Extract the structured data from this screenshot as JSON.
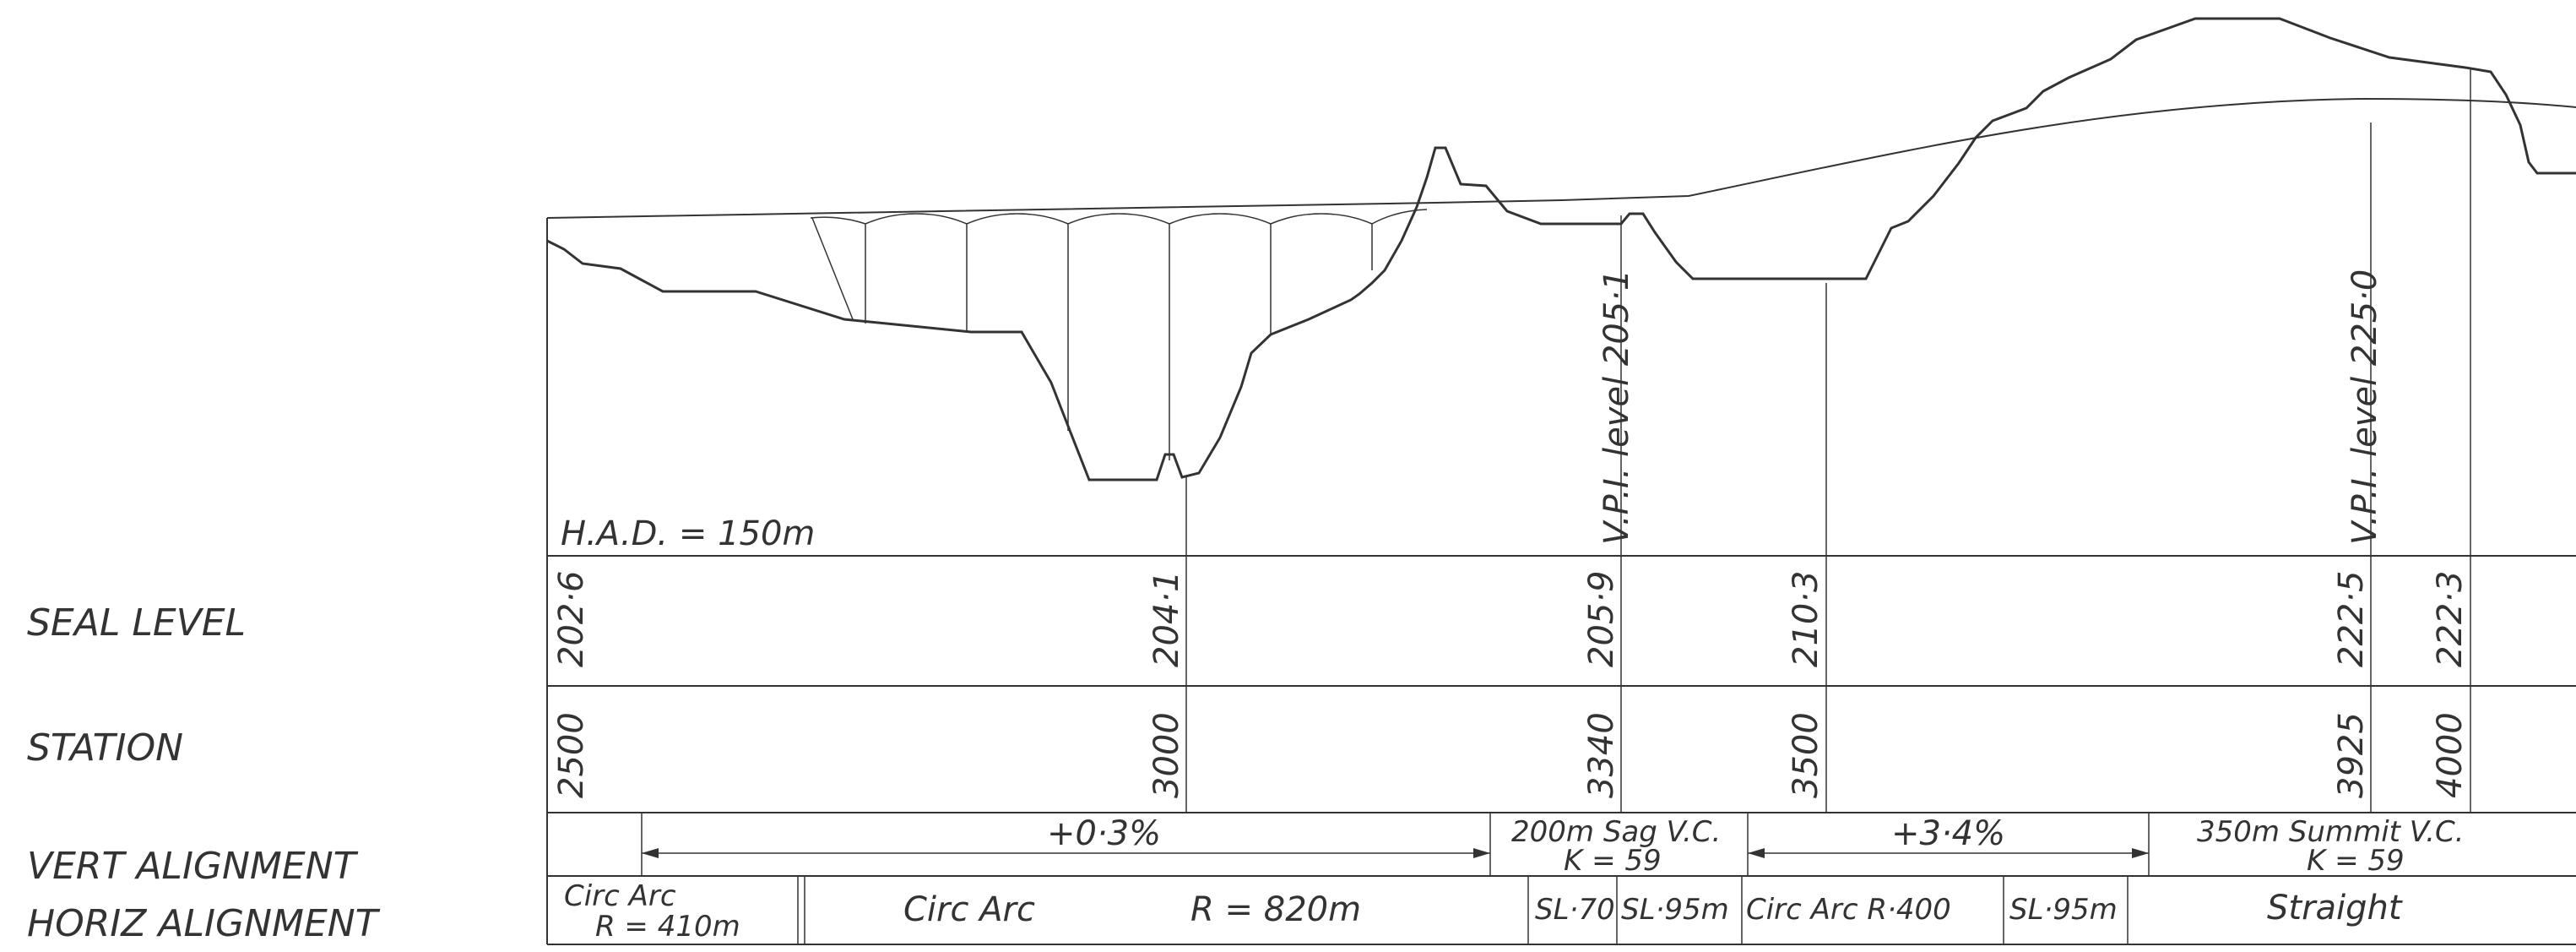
{
  "row_labels": {
    "seal_level": "SEAL LEVEL",
    "station": "STATION",
    "vert_alignment": "VERT ALIGNMENT",
    "horiz_alignment": "HORIZ ALIGNMENT"
  },
  "datum": "H.A.D. = 150m",
  "vpi_labels": [
    "V.P.I. level 205·1",
    "V.P.I. level 225·0"
  ],
  "seal_levels": [
    "202·6",
    "204·1",
    "205·9",
    "210·3",
    "222·5",
    "222·3"
  ],
  "stations": [
    "2500",
    "3000",
    "3340",
    "3500",
    "3925",
    "4000"
  ],
  "vertical_alignment": [
    "+0·3%",
    "200m Sag V.C.",
    "K = 59",
    "+3·4%",
    "350m Summit V.C.",
    "K = 59"
  ],
  "horizontal_alignment": [
    "Circ Arc",
    "R = 410m",
    "Circ Arc",
    "R = 820m",
    "SL·70",
    "SL·95m",
    "Circ Arc R·400",
    "SL·95m",
    "Straight"
  ],
  "colors": {
    "ink": "#333333",
    "paper": "#ffffff"
  }
}
